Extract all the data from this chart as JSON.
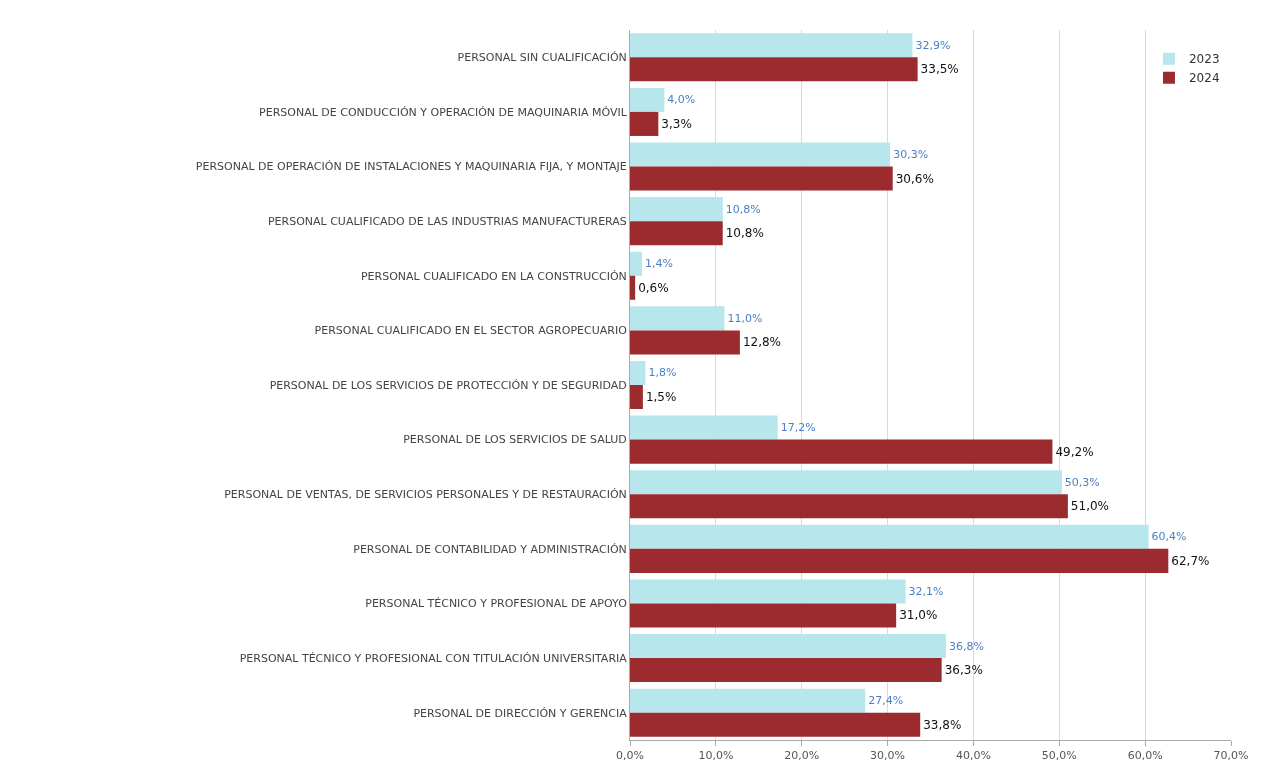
{
  "chart_data": {
    "type": "bar",
    "orientation": "horizontal",
    "categories": [
      "PERSONAL SIN CUALIFICACIÓN",
      "PERSONAL DE CONDUCCIÓN Y OPERACIÓN DE MAQUINARIA MÓVIL",
      "PERSONAL DE OPERACIÓN DE INSTALACIONES Y MAQUINARIA FIJA, Y MONTAJE",
      "PERSONAL CUALIFICADO DE LAS INDUSTRIAS MANUFACTURERAS",
      "PERSONAL CUALIFICADO EN LA CONSTRUCCIÓN",
      "PERSONAL CUALIFICADO EN EL SECTOR AGROPECUARIO",
      "PERSONAL DE LOS SERVICIOS DE PROTECCIÓN Y DE SEGURIDAD",
      "PERSONAL DE LOS SERVICIOS DE SALUD",
      "PERSONAL DE VENTAS, DE SERVICIOS PERSONALES Y DE RESTAURACIÓN",
      "PERSONAL DE CONTABILIDAD Y ADMINISTRACIÓN",
      "PERSONAL TÉCNICO Y PROFESIONAL DE APOYO",
      "PERSONAL TÉCNICO Y PROFESIONAL CON TITULACIÓN UNIVERSITARIA",
      "PERSONAL DE DIRECCIÓN Y GERENCIA"
    ],
    "series": [
      {
        "name": "2023",
        "color": "#b7e6ec",
        "values": [
          32.9,
          4.0,
          30.3,
          10.8,
          1.4,
          11.0,
          1.8,
          17.2,
          50.3,
          60.4,
          32.1,
          36.8,
          27.4
        ],
        "value_labels": [
          "32,9%",
          "4,0%",
          "30,3%",
          "10,8%",
          "1,4%",
          "11,0%",
          "1,8%",
          "17,2%",
          "50,3%",
          "60,4%",
          "32,1%",
          "36,8%",
          "27,4%"
        ]
      },
      {
        "name": "2024",
        "color": "#9b2b2f",
        "values": [
          33.5,
          3.3,
          30.6,
          10.8,
          0.6,
          12.8,
          1.5,
          49.2,
          51.0,
          62.7,
          31.0,
          36.3,
          33.8
        ],
        "value_labels": [
          "33,5%",
          "3,3%",
          "30,6%",
          "10,8%",
          "0,6%",
          "12,8%",
          "1,5%",
          "49,2%",
          "51,0%",
          "62,7%",
          "31,0%",
          "36,3%",
          "33,8%"
        ]
      }
    ],
    "xlim": [
      0,
      70
    ],
    "xticks": [
      {
        "value": 0,
        "label": "0,0%"
      },
      {
        "value": 10,
        "label": "10,0%"
      },
      {
        "value": 20,
        "label": "20,0%"
      },
      {
        "value": 30,
        "label": "30,0%"
      },
      {
        "value": 40,
        "label": "40,0%"
      },
      {
        "value": 50,
        "label": "50,0%"
      },
      {
        "value": 60,
        "label": "60,0%"
      },
      {
        "value": 70,
        "label": "70,0%"
      }
    ],
    "grid": "x",
    "legend": "top right"
  }
}
